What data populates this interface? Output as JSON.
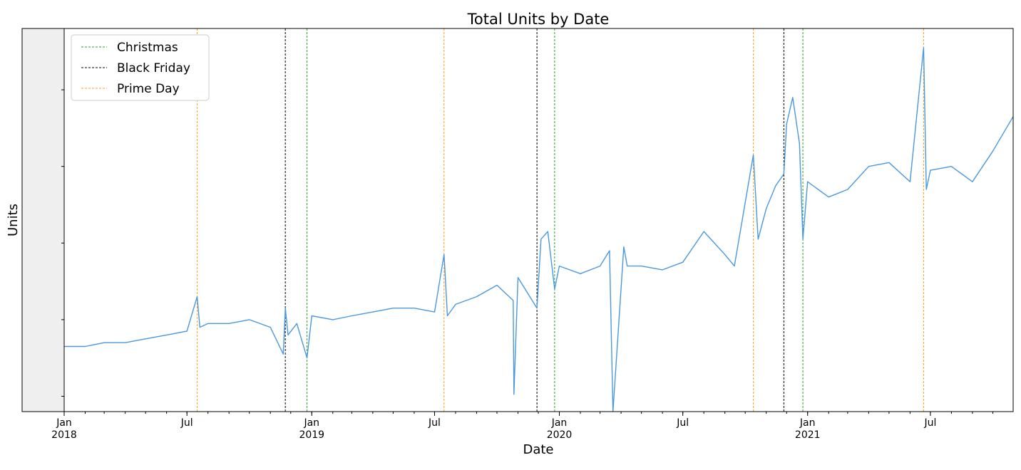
{
  "chart_data": {
    "type": "line",
    "title": "Total Units by Date",
    "xlabel": "Date",
    "ylabel": "Units",
    "xlim": [
      "2018-01-01",
      "2021-10-31"
    ],
    "ylim": [
      0,
      100
    ],
    "y_tick_labels_shown": false,
    "grid": false,
    "legend_position": "top-left",
    "x_ticks": [
      {
        "date": "2018-01-01",
        "label": "Jan",
        "sublabel": "2018"
      },
      {
        "date": "2018-07-01",
        "label": "Jul",
        "sublabel": ""
      },
      {
        "date": "2019-01-01",
        "label": "Jan",
        "sublabel": "2019"
      },
      {
        "date": "2019-07-01",
        "label": "Jul",
        "sublabel": ""
      },
      {
        "date": "2020-01-01",
        "label": "Jan",
        "sublabel": "2020"
      },
      {
        "date": "2020-07-01",
        "label": "Jul",
        "sublabel": ""
      },
      {
        "date": "2021-01-01",
        "label": "Jan",
        "sublabel": "2021"
      },
      {
        "date": "2021-07-01",
        "label": "Jul",
        "sublabel": ""
      }
    ],
    "legend": [
      {
        "label": "Christmas",
        "color": "#2ca02c"
      },
      {
        "label": "Black Friday",
        "color": "#000000"
      },
      {
        "label": "Prime Day",
        "color": "#ff9f1c"
      }
    ],
    "events": [
      {
        "kind": "Prime Day",
        "date": "2018-07-16"
      },
      {
        "kind": "Black Friday",
        "date": "2018-11-23"
      },
      {
        "kind": "Christmas",
        "date": "2018-12-25"
      },
      {
        "kind": "Prime Day",
        "date": "2019-07-15"
      },
      {
        "kind": "Black Friday",
        "date": "2019-11-29"
      },
      {
        "kind": "Christmas",
        "date": "2019-12-25"
      },
      {
        "kind": "Prime Day",
        "date": "2020-10-13"
      },
      {
        "kind": "Black Friday",
        "date": "2020-11-27"
      },
      {
        "kind": "Christmas",
        "date": "2020-12-25"
      },
      {
        "kind": "Prime Day",
        "date": "2021-06-21"
      }
    ],
    "series": [
      {
        "color": "#4a98e0",
        "x": [
          "2018-01-01",
          "2018-02-01",
          "2018-03-01",
          "2018-04-01",
          "2018-05-01",
          "2018-06-01",
          "2018-07-01",
          "2018-07-16",
          "2018-07-20",
          "2018-08-01",
          "2018-09-01",
          "2018-10-01",
          "2018-11-01",
          "2018-11-20",
          "2018-11-23",
          "2018-11-27",
          "2018-12-10",
          "2018-12-25",
          "2019-01-01",
          "2019-02-01",
          "2019-03-01",
          "2019-04-01",
          "2019-05-01",
          "2019-06-01",
          "2019-07-01",
          "2019-07-15",
          "2019-07-20",
          "2019-08-01",
          "2019-09-01",
          "2019-10-01",
          "2019-10-25",
          "2019-10-26",
          "2019-11-01",
          "2019-11-29",
          "2019-12-05",
          "2019-12-15",
          "2019-12-25",
          "2020-01-01",
          "2020-02-01",
          "2020-03-01",
          "2020-03-15",
          "2020-03-20",
          "2020-04-05",
          "2020-04-10",
          "2020-05-01",
          "2020-06-01",
          "2020-07-01",
          "2020-08-01",
          "2020-09-01",
          "2020-09-15",
          "2020-10-13",
          "2020-10-20",
          "2020-11-01",
          "2020-11-15",
          "2020-11-27",
          "2020-12-01",
          "2020-12-10",
          "2020-12-20",
          "2020-12-25",
          "2021-01-01",
          "2021-02-01",
          "2021-03-01",
          "2021-04-01",
          "2021-05-01",
          "2021-06-01",
          "2021-06-21",
          "2021-06-25",
          "2021-07-01",
          "2021-08-01",
          "2021-09-01",
          "2021-10-01",
          "2021-10-31"
        ],
        "y": [
          17,
          17,
          18,
          18,
          19,
          20,
          21,
          30,
          22,
          23,
          23,
          24,
          22,
          15,
          27,
          20,
          23,
          14,
          25,
          24,
          25,
          26,
          27,
          27,
          26,
          41,
          25,
          28,
          30,
          33,
          29,
          4.5,
          35,
          27,
          45,
          47,
          32,
          38,
          36,
          38,
          42,
          0,
          43,
          38,
          38,
          37,
          39,
          47,
          41,
          38,
          67,
          45,
          53,
          59,
          62,
          75,
          82,
          70,
          45,
          60,
          56,
          58,
          64,
          65,
          60,
          95,
          58,
          63,
          64,
          60,
          68,
          77
        ]
      }
    ]
  }
}
